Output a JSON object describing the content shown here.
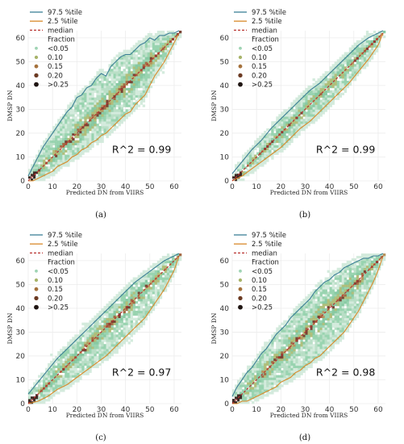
{
  "chart_data": [
    {
      "type": "heatmap",
      "panel": "(a)",
      "title": "",
      "xlabel": "Predicted DN from VIIRS",
      "ylabel": "DMSP DN",
      "xlim": [
        0,
        63
      ],
      "ylim": [
        0,
        63
      ],
      "xticks": [
        0,
        10,
        20,
        30,
        40,
        50,
        60
      ],
      "yticks": [
        0,
        10,
        20,
        30,
        40,
        50,
        60
      ],
      "annotation": "R^2 = 0.99",
      "legend": {
        "placement": "top-left",
        "lines": [
          {
            "label": "97.5 %tile",
            "color": "#3c7f96"
          },
          {
            "label": "2.5 %tile",
            "color": "#d98a2b"
          },
          {
            "label": "median",
            "color": "#b8312f"
          }
        ],
        "fraction_title": "Fraction",
        "fraction_levels": [
          {
            "label": "<0.05",
            "color": "#9fd4b4"
          },
          {
            "label": "0.10",
            "color": "#a8b46a"
          },
          {
            "label": "0.15",
            "color": "#a5723c"
          },
          {
            "label": "0.20",
            "color": "#6b3a22"
          },
          {
            "label": ">0.25",
            "color": "#1f1512"
          }
        ]
      },
      "series": [
        {
          "name": "97.5 %tile",
          "x": [
            0,
            2,
            4,
            6,
            8,
            10,
            12,
            14,
            16,
            18,
            20,
            22,
            24,
            26,
            28,
            30,
            32,
            34,
            36,
            38,
            40,
            42,
            44,
            46,
            48,
            50,
            52,
            54,
            56,
            58,
            60,
            62
          ],
          "y": [
            2,
            6,
            10,
            14,
            17,
            20,
            23,
            26,
            29,
            31,
            35,
            36,
            39,
            40,
            43,
            45,
            44,
            48,
            50,
            52,
            53,
            53,
            55,
            57,
            58,
            60,
            59,
            61,
            61,
            62,
            62,
            63
          ]
        },
        {
          "name": "2.5 %tile",
          "x": [
            0,
            2,
            4,
            6,
            8,
            10,
            12,
            14,
            16,
            18,
            20,
            22,
            24,
            26,
            28,
            30,
            32,
            34,
            36,
            38,
            40,
            42,
            44,
            46,
            48,
            50,
            52,
            54,
            56,
            58,
            60,
            62
          ],
          "y": [
            0,
            0,
            1,
            2,
            3,
            4,
            6,
            7,
            8,
            10,
            11,
            13,
            14,
            16,
            17,
            19,
            20,
            22,
            24,
            26,
            28,
            29,
            32,
            34,
            36,
            40,
            44,
            47,
            50,
            54,
            58,
            62
          ]
        },
        {
          "name": "median",
          "x": [
            0,
            2,
            4,
            6,
            8,
            10,
            12,
            14,
            16,
            18,
            20,
            22,
            24,
            26,
            28,
            30,
            32,
            34,
            36,
            38,
            40,
            42,
            44,
            46,
            48,
            50,
            52,
            54,
            56,
            58,
            60,
            62
          ],
          "y": [
            0,
            2,
            4,
            6,
            8,
            10,
            12,
            14,
            16,
            18,
            20,
            22,
            24,
            26,
            28,
            30,
            32,
            34,
            36,
            38,
            40,
            42,
            44,
            46,
            48,
            50,
            52,
            54,
            56,
            58,
            60,
            62
          ]
        }
      ]
    },
    {
      "type": "heatmap",
      "panel": "(b)",
      "title": "",
      "xlabel": "Predicted DN from VIIRS",
      "ylabel": "DMSP DN",
      "xlim": [
        0,
        63
      ],
      "ylim": [
        0,
        63
      ],
      "xticks": [
        0,
        10,
        20,
        30,
        40,
        50,
        60
      ],
      "yticks": [
        0,
        10,
        20,
        30,
        40,
        50,
        60
      ],
      "annotation": "R^2 = 0.99",
      "legend": {
        "placement": "top-left",
        "lines": [
          {
            "label": "97.5 %tile",
            "color": "#3c7f96"
          },
          {
            "label": "2.5 %tile",
            "color": "#d98a2b"
          },
          {
            "label": "median",
            "color": "#b8312f"
          }
        ],
        "fraction_title": "Fraction",
        "fraction_levels": [
          {
            "label": "<0.05",
            "color": "#9fd4b4"
          },
          {
            "label": "0.10",
            "color": "#a8b46a"
          },
          {
            "label": "0.15",
            "color": "#a5723c"
          },
          {
            "label": "0.20",
            "color": "#6b3a22"
          },
          {
            "label": ">0.25",
            "color": "#1f1512"
          }
        ]
      },
      "series": [
        {
          "name": "97.5 %tile",
          "x": [
            0,
            4,
            8,
            12,
            16,
            20,
            24,
            28,
            32,
            36,
            40,
            44,
            48,
            52,
            56,
            60,
            62
          ],
          "y": [
            3,
            8,
            13,
            17,
            22,
            26,
            30,
            34,
            38,
            41,
            45,
            49,
            53,
            57,
            60,
            62,
            63
          ]
        },
        {
          "name": "2.5 %tile",
          "x": [
            0,
            4,
            8,
            12,
            16,
            20,
            24,
            28,
            32,
            36,
            40,
            44,
            48,
            52,
            56,
            60,
            62
          ],
          "y": [
            0,
            2,
            5,
            8,
            11,
            14,
            18,
            22,
            25,
            29,
            33,
            37,
            41,
            46,
            51,
            57,
            62
          ]
        },
        {
          "name": "median",
          "x": [
            0,
            4,
            8,
            12,
            16,
            20,
            24,
            28,
            32,
            36,
            40,
            44,
            48,
            52,
            56,
            60,
            62
          ],
          "y": [
            0,
            4,
            8,
            12,
            16,
            20,
            24,
            28,
            32,
            36,
            40,
            44,
            48,
            52,
            56,
            60,
            62
          ]
        }
      ]
    },
    {
      "type": "heatmap",
      "panel": "(c)",
      "title": "",
      "xlabel": "Predicted DN from VIIRS",
      "ylabel": "DMSP DN",
      "xlim": [
        0,
        63
      ],
      "ylim": [
        0,
        63
      ],
      "xticks": [
        0,
        10,
        20,
        30,
        40,
        50,
        60
      ],
      "yticks": [
        0,
        10,
        20,
        30,
        40,
        50,
        60
      ],
      "annotation": "R^2 = 0.97",
      "legend": {
        "placement": "top-left",
        "lines": [
          {
            "label": "97.5 %tile",
            "color": "#3c7f96"
          },
          {
            "label": "2.5 %tile",
            "color": "#d98a2b"
          },
          {
            "label": "median",
            "color": "#b8312f"
          }
        ],
        "fraction_title": "Fraction",
        "fraction_levels": [
          {
            "label": "<0.05",
            "color": "#9fd4b4"
          },
          {
            "label": "0.10",
            "color": "#a8b46a"
          },
          {
            "label": "0.15",
            "color": "#a5723c"
          },
          {
            "label": "0.20",
            "color": "#6b3a22"
          },
          {
            "label": ">0.25",
            "color": "#1f1512"
          }
        ]
      },
      "series": [
        {
          "name": "97.5 %tile",
          "x": [
            0,
            4,
            8,
            12,
            16,
            20,
            24,
            28,
            32,
            36,
            40,
            44,
            48,
            52,
            56,
            60,
            62
          ],
          "y": [
            4,
            9,
            14,
            19,
            23,
            27,
            31,
            35,
            39,
            43,
            47,
            51,
            54,
            57,
            60,
            62,
            63
          ]
        },
        {
          "name": "2.5 %tile",
          "x": [
            0,
            4,
            8,
            12,
            16,
            20,
            24,
            28,
            32,
            36,
            40,
            44,
            48,
            52,
            56,
            60,
            62
          ],
          "y": [
            0,
            1,
            3,
            6,
            8,
            11,
            14,
            17,
            20,
            24,
            28,
            32,
            36,
            42,
            48,
            56,
            62
          ]
        },
        {
          "name": "median",
          "x": [
            0,
            4,
            8,
            12,
            16,
            20,
            24,
            28,
            32,
            36,
            40,
            44,
            48,
            52,
            56,
            60,
            62
          ],
          "y": [
            0,
            4,
            8,
            12,
            16,
            20,
            24,
            28,
            32,
            36,
            40,
            44,
            48,
            52,
            56,
            60,
            62
          ]
        }
      ]
    },
    {
      "type": "heatmap",
      "panel": "(d)",
      "title": "",
      "xlabel": "Predicted DN from VIIRS",
      "ylabel": "DMSP DN",
      "xlim": [
        0,
        63
      ],
      "ylim": [
        0,
        63
      ],
      "xticks": [
        0,
        10,
        20,
        30,
        40,
        50,
        60
      ],
      "yticks": [
        0,
        10,
        20,
        30,
        40,
        50,
        60
      ],
      "annotation": "R^2 = 0.98",
      "legend": {
        "placement": "top-left",
        "lines": [
          {
            "label": "97.5 %tile",
            "color": "#3c7f96"
          },
          {
            "label": "2.5 %tile",
            "color": "#d98a2b"
          },
          {
            "label": "median",
            "color": "#b8312f"
          }
        ],
        "fraction_title": "Fraction",
        "fraction_levels": [
          {
            "label": "<0.05",
            "color": "#9fd4b4"
          },
          {
            "label": "0.10",
            "color": "#a8b46a"
          },
          {
            "label": "0.15",
            "color": "#a5723c"
          },
          {
            "label": "0.20",
            "color": "#6b3a22"
          },
          {
            "label": ">0.25",
            "color": "#1f1512"
          }
        ]
      },
      "series": [
        {
          "name": "97.5 %tile",
          "x": [
            0,
            2,
            4,
            6,
            8,
            10,
            12,
            14,
            16,
            18,
            20,
            22,
            24,
            26,
            28,
            30,
            32,
            34,
            36,
            38,
            40,
            42,
            44,
            46,
            48,
            50,
            52,
            54,
            56,
            58,
            60,
            62
          ],
          "y": [
            3,
            7,
            10,
            13,
            15,
            18,
            21,
            23,
            26,
            29,
            31,
            33,
            36,
            38,
            40,
            42,
            44,
            47,
            49,
            51,
            52,
            54,
            55,
            57,
            58,
            59,
            60,
            61,
            61,
            62,
            62,
            63
          ]
        },
        {
          "name": "2.5 %tile",
          "x": [
            0,
            2,
            4,
            6,
            8,
            10,
            12,
            14,
            16,
            18,
            20,
            22,
            24,
            26,
            28,
            30,
            32,
            34,
            36,
            38,
            40,
            42,
            44,
            46,
            48,
            50,
            52,
            54,
            56,
            58,
            60,
            62
          ],
          "y": [
            0,
            0,
            1,
            1,
            2,
            3,
            4,
            5,
            6,
            7,
            9,
            10,
            11,
            13,
            14,
            16,
            17,
            19,
            20,
            22,
            24,
            26,
            28,
            30,
            33,
            36,
            39,
            43,
            47,
            51,
            56,
            62
          ]
        },
        {
          "name": "median",
          "x": [
            0,
            2,
            4,
            6,
            8,
            10,
            12,
            14,
            16,
            18,
            20,
            22,
            24,
            26,
            28,
            30,
            32,
            34,
            36,
            38,
            40,
            42,
            44,
            46,
            48,
            50,
            52,
            54,
            56,
            58,
            60,
            62
          ],
          "y": [
            0,
            2,
            4,
            6,
            8,
            10,
            12,
            14,
            16,
            18,
            20,
            22,
            24,
            26,
            28,
            30,
            32,
            34,
            36,
            38,
            40,
            42,
            44,
            46,
            48,
            50,
            52,
            54,
            56,
            58,
            60,
            62
          ]
        }
      ]
    }
  ]
}
